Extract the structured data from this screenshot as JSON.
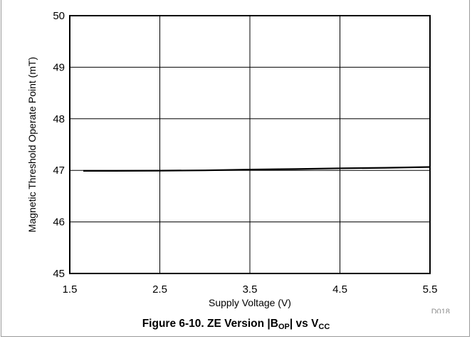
{
  "chart_data": {
    "type": "line",
    "xlabel": "Supply Voltage (V)",
    "ylabel": "Magnetic Threshold Operate Point (mT)",
    "xlim": [
      1.5,
      5.5
    ],
    "ylim": [
      45,
      50
    ],
    "x_ticks": [
      "1.5",
      "2.5",
      "3.5",
      "4.5",
      "5.5"
    ],
    "y_ticks": [
      "45",
      "46",
      "47",
      "48",
      "49",
      "50"
    ],
    "grid": true,
    "series": [
      {
        "x": [
          1.65,
          2.0,
          2.5,
          3.0,
          3.5,
          4.0,
          4.5,
          5.0,
          5.5
        ],
        "y": [
          46.99,
          46.99,
          46.995,
          47.0,
          47.015,
          47.025,
          47.04,
          47.05,
          47.065
        ]
      }
    ],
    "code": "D018"
  },
  "caption": {
    "prefix": "Figure 6-10. ZE Version |B",
    "sub1": "OP",
    "middle": "| vs V",
    "sub2": "CC"
  },
  "colors": {
    "line": "#000000",
    "grid": "#000000",
    "frame": "#9a9a9a"
  }
}
